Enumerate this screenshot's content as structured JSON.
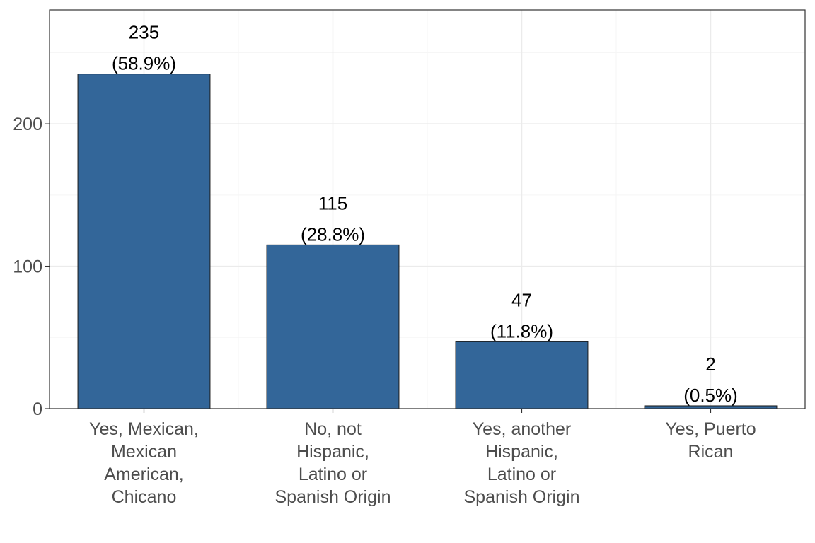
{
  "chart_data": {
    "type": "bar",
    "categories": [
      [
        "Yes, Mexican,",
        "Mexican",
        "American,",
        "Chicano"
      ],
      [
        "No, not",
        "Hispanic,",
        "Latino or",
        "Spanish Origin"
      ],
      [
        "Yes, another",
        "Hispanic,",
        "Latino or",
        "Spanish Origin"
      ],
      [
        "Yes, Puerto",
        "Rican"
      ]
    ],
    "values": [
      235,
      115,
      47,
      2
    ],
    "value_labels": [
      "235",
      "115",
      "47",
      "2"
    ],
    "percent_labels": [
      "(58.9%)",
      "(28.8%)",
      "(11.8%)",
      "(0.5%)"
    ],
    "title": "",
    "xlabel": "",
    "ylabel": "",
    "ylim": [
      0,
      280
    ],
    "yticks": [
      0,
      100,
      200
    ],
    "ytick_labels": [
      "0",
      "100",
      "200"
    ],
    "grid": true,
    "colors": {
      "bar": "#336699",
      "bar_outline": "#1a1a1a",
      "grid_major": "#ebebeb",
      "grid_minor": "#f5f5f5",
      "panel_border": "#333333"
    }
  }
}
